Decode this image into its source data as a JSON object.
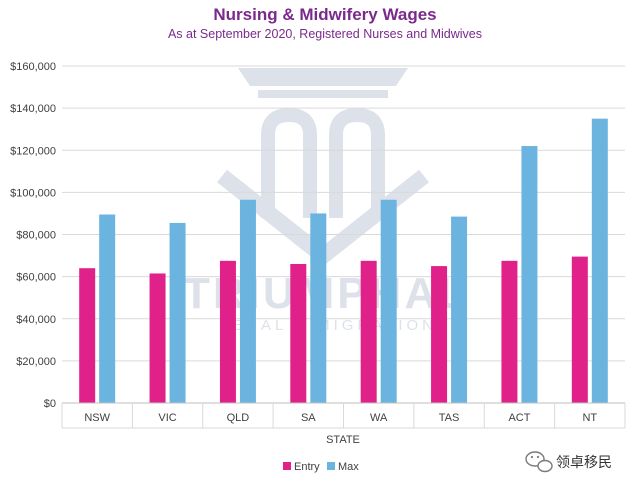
{
  "chart_data": {
    "type": "bar",
    "title": "Nursing & Midwifery Wages",
    "subtitle": "As at September 2020,  Registered Nurses and Midwives",
    "xlabel": "STATE",
    "ylabel": "",
    "categories": [
      "NSW",
      "VIC",
      "QLD",
      "SA",
      "WA",
      "TAS",
      "ACT",
      "NT"
    ],
    "series": [
      {
        "name": "Entry",
        "color": "#e0218a",
        "values": [
          64000,
          61500,
          67500,
          66000,
          67500,
          65000,
          67500,
          69500
        ]
      },
      {
        "name": "Max",
        "color": "#6cb4e0",
        "values": [
          89500,
          85500,
          96500,
          90000,
          96500,
          88500,
          122000,
          135000
        ]
      }
    ],
    "ylim": [
      0,
      160000
    ],
    "yticks": [
      0,
      20000,
      40000,
      60000,
      80000,
      100000,
      120000,
      140000,
      160000
    ],
    "ytick_labels": [
      "$0",
      "$20,000",
      "$40,000",
      "$60,000",
      "$80,000",
      "$100,000",
      "$120,000",
      "$140,000",
      "$160,000"
    ],
    "grid": true,
    "legend": "bottom-center"
  },
  "watermark": {
    "name": "TRIUMPHAL",
    "tagline": "LEGAL & MIGRATION"
  },
  "source_badge": {
    "label": "领卓移民",
    "icon": "wechat-icon"
  },
  "colors": {
    "title": "#7b2a8c",
    "axis_text": "#404040",
    "grid": "#d9d9d9",
    "watermark": "#aab3c7"
  }
}
